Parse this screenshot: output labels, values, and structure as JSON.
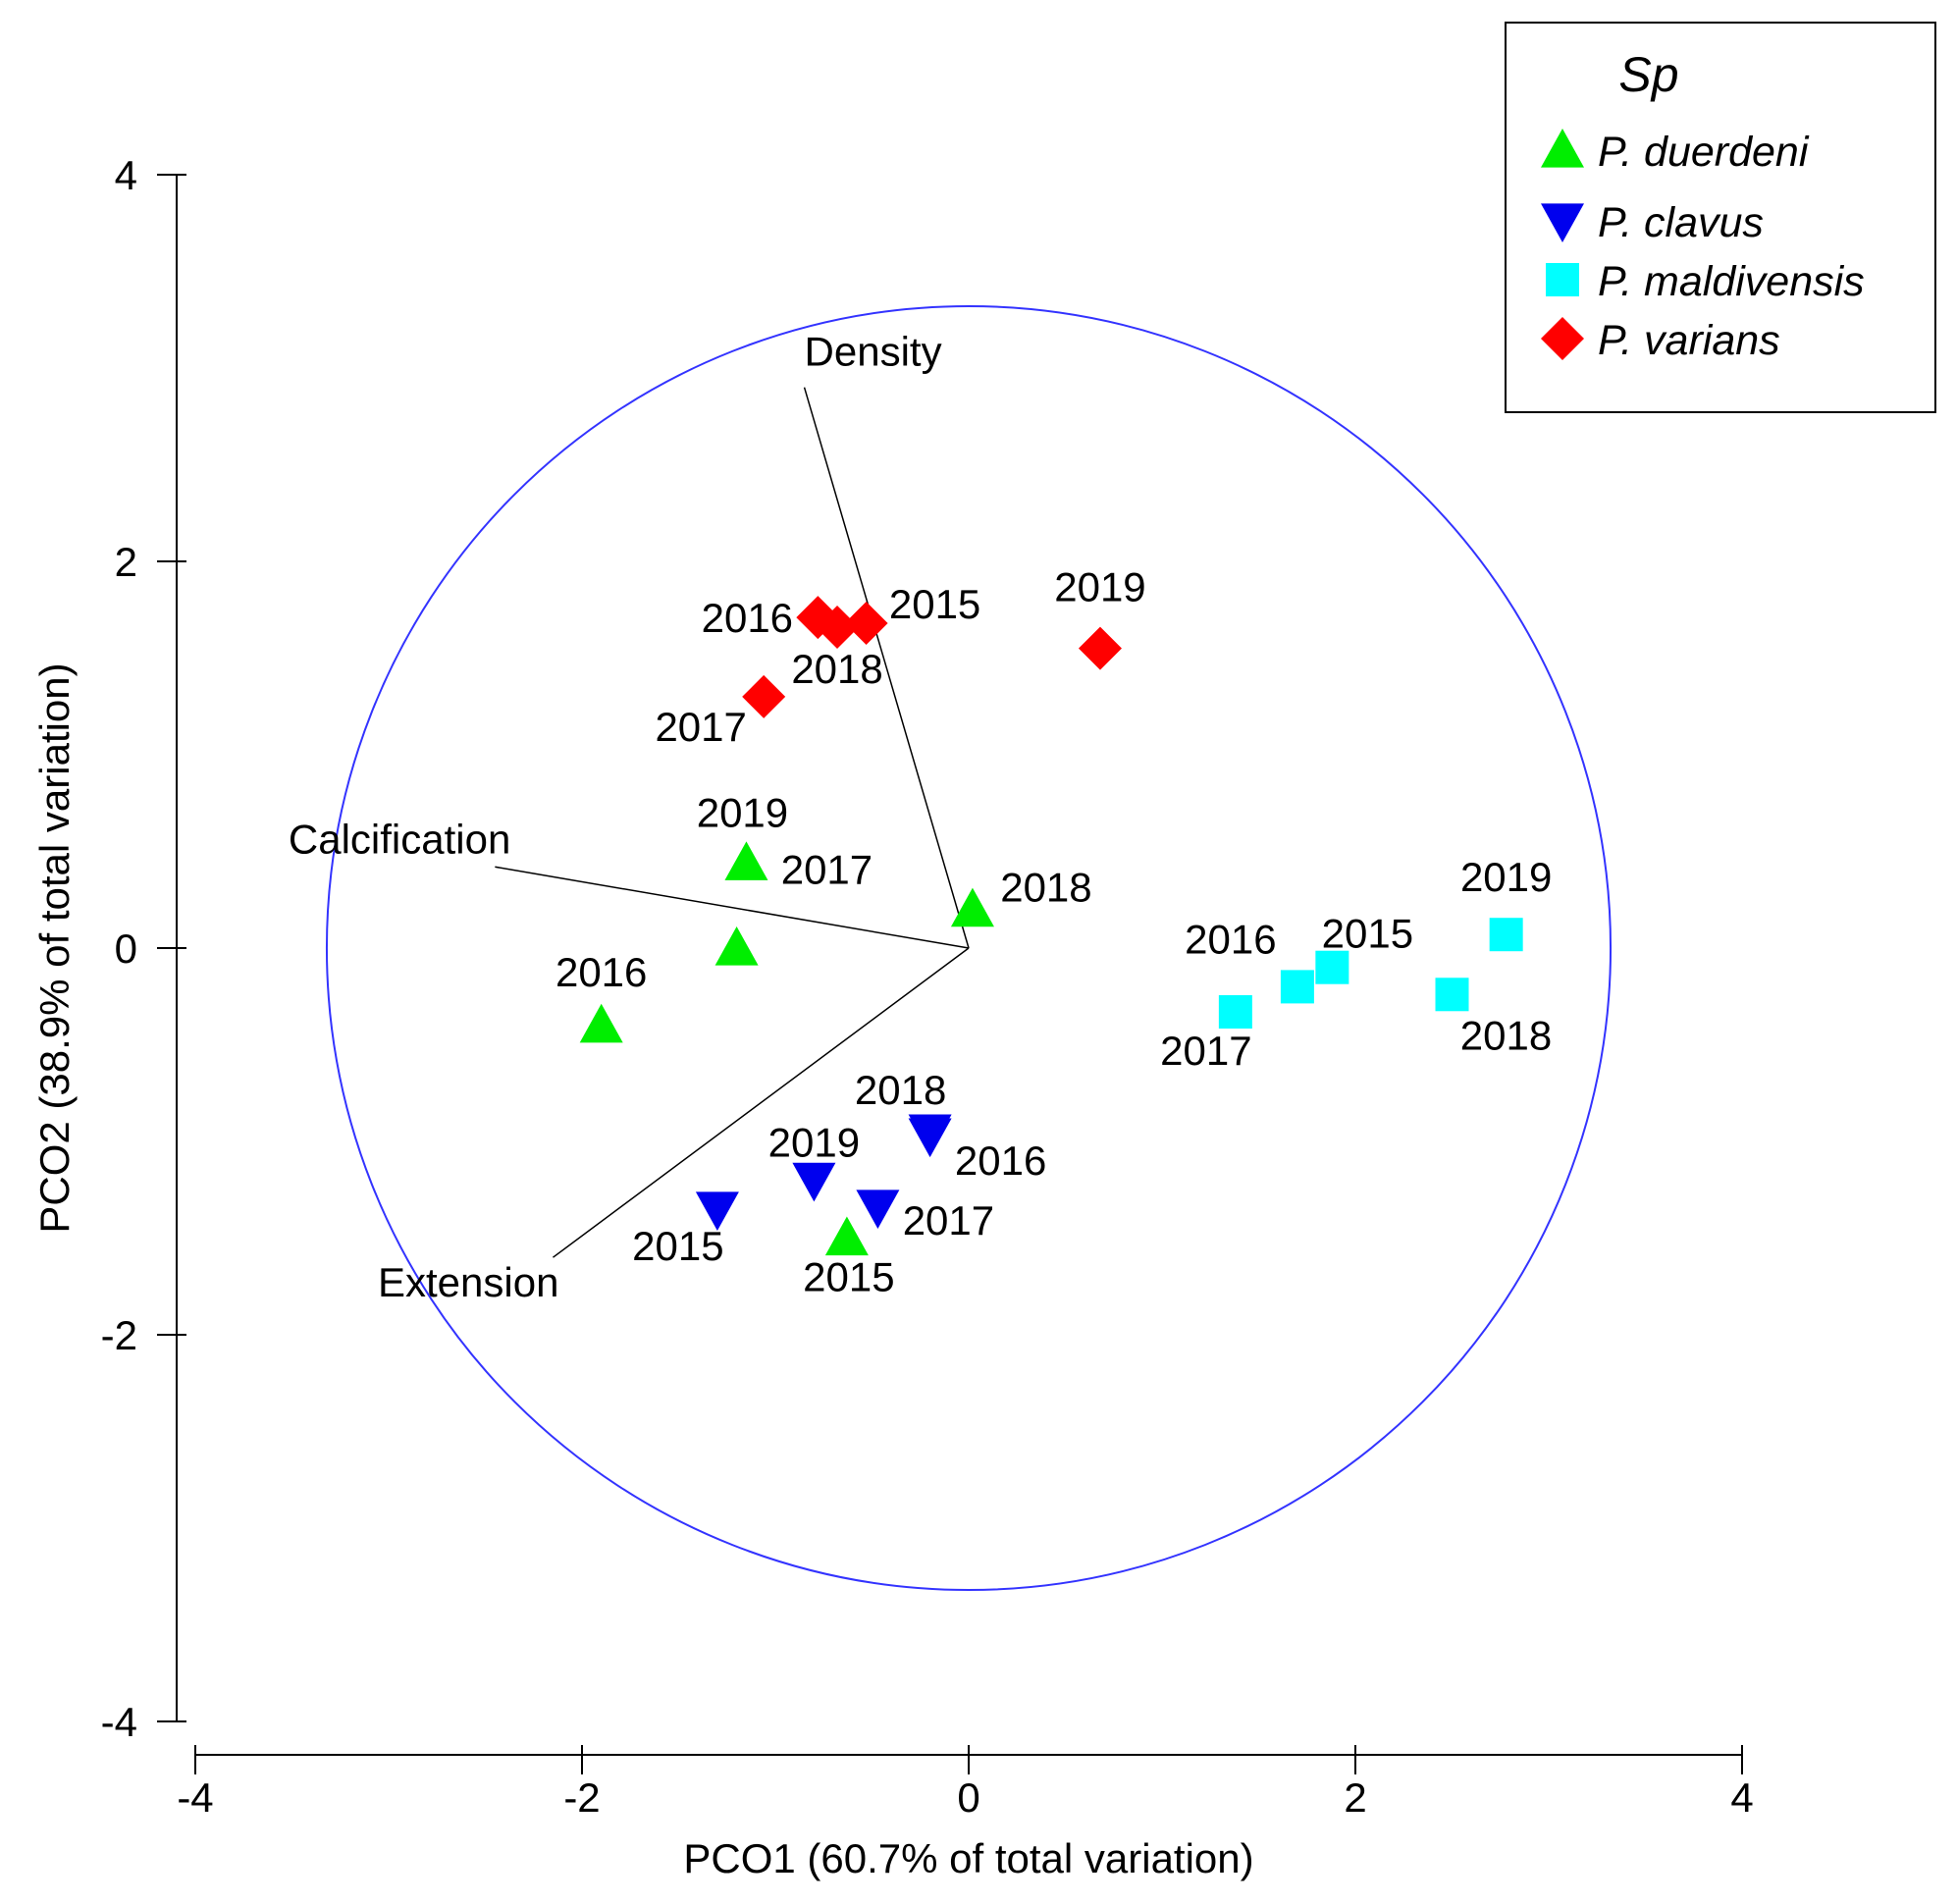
{
  "chart_data": {
    "type": "scatter",
    "xlabel": "PCO1 (60.7% of total variation)",
    "ylabel": "PCO2 (38.9% of total variation)",
    "xlim": [
      -4,
      4
    ],
    "ylim": [
      -4,
      4
    ],
    "xticks": [
      -4,
      -2,
      0,
      2,
      4
    ],
    "yticks": [
      -4,
      -2,
      0,
      2,
      4
    ],
    "xtick_labels": [
      "-4",
      "-2",
      "0",
      "2",
      "4"
    ],
    "ytick_labels": [
      "-4",
      "-2",
      "0",
      "2",
      "4"
    ],
    "grid": false,
    "legend": {
      "title": "Sp",
      "placement": "top-right"
    },
    "circle": {
      "center": [
        0,
        0
      ],
      "radius": 3.32,
      "color": "#3333ff"
    },
    "vectors": [
      {
        "name": "Density",
        "x": -0.85,
        "y": 2.9
      },
      {
        "name": "Calcification",
        "x": -2.45,
        "y": 0.42
      },
      {
        "name": "Extension",
        "x": -2.15,
        "y": -1.6
      }
    ],
    "series": [
      {
        "name": "P. duerdeni",
        "marker": "triangle-up",
        "color": "#00ee00",
        "points": [
          {
            "x": -1.15,
            "y": 0.44,
            "label": "2017"
          },
          {
            "x": -1.2,
            "y": 0.0,
            "label": ""
          },
          {
            "x": -1.9,
            "y": -0.4,
            "label": "2016"
          },
          {
            "x": 0.02,
            "y": 0.2,
            "label": "2018"
          },
          {
            "x": -0.63,
            "y": -1.5,
            "label": "2015"
          }
        ]
      },
      {
        "name": "P. clavus",
        "marker": "triangle-down",
        "color": "#0000ee",
        "points": [
          {
            "x": -1.3,
            "y": -1.35,
            "label": "2015"
          },
          {
            "x": -0.8,
            "y": -1.2,
            "label": "2019"
          },
          {
            "x": -0.47,
            "y": -1.34,
            "label": "2017"
          },
          {
            "x": -0.2,
            "y": -0.95,
            "label": "2018"
          },
          {
            "x": -0.2,
            "y": -0.97,
            "label": "2016"
          }
        ]
      },
      {
        "name": "P. maldivensis",
        "marker": "square",
        "color": "#00ffff",
        "points": [
          {
            "x": 1.38,
            "y": -0.33,
            "label": "2017"
          },
          {
            "x": 1.7,
            "y": -0.2,
            "label": "2016"
          },
          {
            "x": 1.88,
            "y": -0.1,
            "label": "2015"
          },
          {
            "x": 2.5,
            "y": -0.24,
            "label": "2018"
          },
          {
            "x": 2.78,
            "y": 0.07,
            "label": "2019"
          }
        ]
      },
      {
        "name": "P. varians",
        "marker": "diamond",
        "color": "#ff0000",
        "points": [
          {
            "x": -0.78,
            "y": 1.71,
            "label": "2016"
          },
          {
            "x": -0.68,
            "y": 1.66,
            "label": "2018"
          },
          {
            "x": -0.53,
            "y": 1.68,
            "label": "2015"
          },
          {
            "x": -1.06,
            "y": 1.3,
            "label": "2017"
          },
          {
            "x": 0.68,
            "y": 1.55,
            "label": "2019"
          }
        ]
      }
    ]
  },
  "extra_labels": [
    {
      "text": "2019",
      "near": "P. duerdeni 2017"
    }
  ]
}
